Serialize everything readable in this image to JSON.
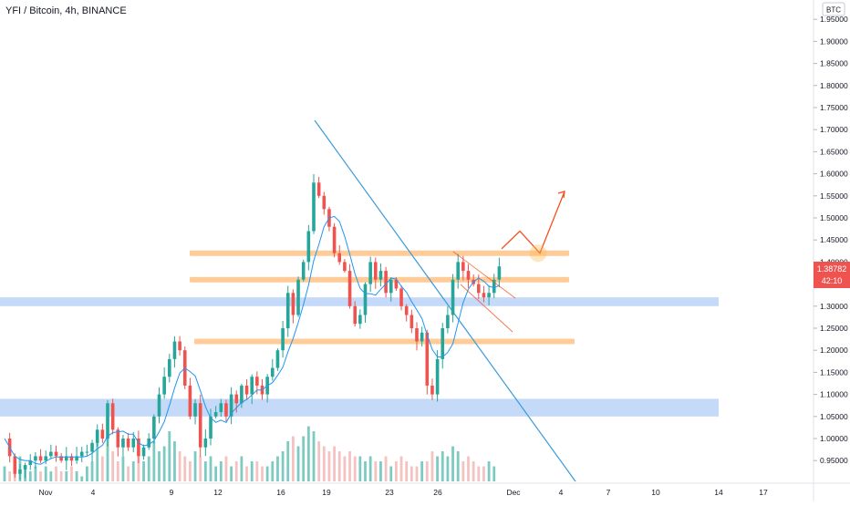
{
  "header": {
    "symbol_title": "YFI / Bitcoin, 4h, BINANCE"
  },
  "price_axis": {
    "currency_label": "BTC",
    "tick_labels": [
      "1.95000",
      "1.90000",
      "1.85000",
      "1.80000",
      "1.75000",
      "1.70000",
      "1.65000",
      "1.60000",
      "1.55000",
      "1.50000",
      "1.45000",
      "1.40000",
      "1.35000",
      "1.30000",
      "1.25000",
      "1.20000",
      "1.15000",
      "1.10000",
      "1.05000",
      "1.00000",
      "0.95000"
    ],
    "current_price_label": "1.38782",
    "countdown_label": "42:10",
    "current_price_color": "#ef5350"
  },
  "time_axis": {
    "tick_labels": [
      "Nov",
      "4",
      "9",
      "12",
      "16",
      "19",
      "23",
      "26",
      "Dec",
      "4",
      "7",
      "10",
      "14",
      "17"
    ]
  },
  "colors": {
    "up": "#26a69a",
    "down": "#ef5350",
    "up_volume": "#26a69a",
    "down_volume": "#ef9a9a",
    "moving_average": "#2196f3",
    "resistance_levels": "#ffcc99",
    "support_zones": "#bbd2f7",
    "trendline": "#3a9bd9",
    "projection_arrow": "#f4511e"
  },
  "chart_data": {
    "type": "candlestick",
    "instrument": "YFI / Bitcoin",
    "timeframe": "4h",
    "exchange": "BINANCE",
    "quote_currency": "BTC",
    "ylim": [
      0.91,
      2.0
    ],
    "x_axis_ticks": [
      "Nov",
      "4",
      "9",
      "12",
      "16",
      "19",
      "23",
      "26",
      "Dec",
      "4",
      "7",
      "10",
      "14",
      "17"
    ],
    "last_price": 1.38782,
    "horizontal_levels": [
      1.42,
      1.36,
      1.22
    ],
    "support_zones": [
      [
        1.3,
        1.32
      ],
      [
        1.05,
        1.09
      ]
    ],
    "descending_trendline": {
      "from_price": 1.72,
      "to_price": 0.91
    },
    "projection_path": [
      1.43,
      1.47,
      1.42,
      1.56
    ],
    "highlight_circle_price": 1.42,
    "price_path": [
      1.0,
      0.96,
      0.92,
      0.93,
      0.94,
      0.95,
      0.96,
      0.95,
      0.96,
      0.97,
      0.96,
      0.95,
      0.96,
      0.95,
      0.96,
      0.97,
      0.97,
      0.99,
      1.02,
      1.0,
      1.08,
      1.02,
      0.98,
      1.0,
      0.98,
      1.0,
      0.96,
      0.98,
      1.0,
      1.05,
      1.1,
      1.14,
      1.18,
      1.22,
      1.2,
      1.12,
      1.05,
      1.08,
      0.98,
      1.0,
      1.05,
      1.06,
      1.08,
      1.05,
      1.1,
      1.08,
      1.12,
      1.1,
      1.14,
      1.12,
      1.1,
      1.14,
      1.16,
      1.2,
      1.25,
      1.33,
      1.28,
      1.36,
      1.4,
      1.47,
      1.58,
      1.55,
      1.52,
      1.48,
      1.42,
      1.4,
      1.38,
      1.3,
      1.26,
      1.28,
      1.35,
      1.4,
      1.36,
      1.38,
      1.33,
      1.36,
      1.34,
      1.3,
      1.28,
      1.25,
      1.22,
      1.24,
      1.12,
      1.1,
      1.18,
      1.25,
      1.28,
      1.36,
      1.4,
      1.38,
      1.36,
      1.35,
      1.33,
      1.32,
      1.33,
      1.36,
      1.39
    ],
    "volume_bars": [
      0.3,
      0.2,
      0.4,
      0.5,
      0.3,
      0.2,
      0.3,
      0.2,
      0.3,
      0.2,
      0.3,
      0.2,
      0.2,
      0.3,
      0.2,
      0.1,
      0.3,
      0.4,
      0.8,
      0.5,
      1.5,
      0.6,
      0.4,
      0.5,
      0.3,
      0.4,
      0.5,
      0.4,
      0.5,
      0.8,
      0.6,
      0.7,
      1.0,
      0.8,
      0.6,
      0.5,
      0.4,
      0.6,
      0.5,
      0.4,
      0.5,
      0.3,
      0.4,
      0.5,
      0.3,
      0.4,
      0.5,
      0.3,
      0.4,
      0.4,
      0.3,
      0.3,
      0.4,
      0.5,
      0.6,
      0.8,
      0.9,
      0.7,
      0.9,
      1.1,
      1.0,
      0.8,
      0.7,
      0.6,
      0.7,
      0.6,
      0.5,
      0.6,
      0.5,
      0.5,
      0.4,
      0.5,
      0.4,
      0.4,
      0.5,
      0.3,
      0.4,
      0.5,
      0.4,
      0.3,
      0.3,
      0.4,
      0.4,
      0.6,
      0.5,
      0.6,
      0.5,
      0.7,
      0.6,
      0.4,
      0.5,
      0.4,
      0.3,
      0.3,
      0.4,
      0.3
    ]
  }
}
